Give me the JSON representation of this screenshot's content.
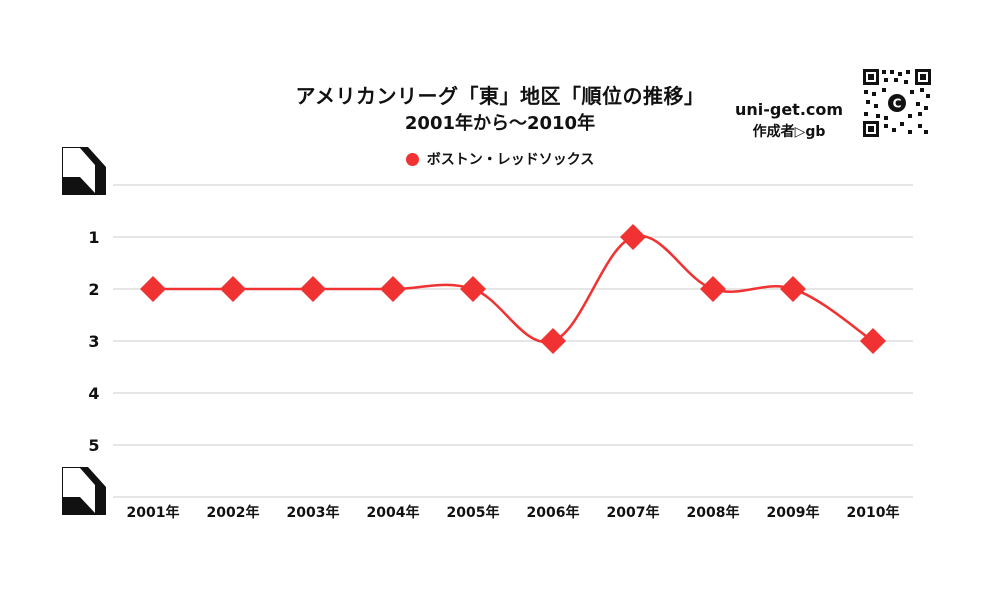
{
  "header": {
    "site": "uni-get.com",
    "author": "作成者▷gb"
  },
  "chart_data": {
    "type": "line",
    "title": "アメリカンリーグ「東」地区「順位の推移」",
    "subtitle": "2001年から～2010年",
    "categories": [
      "2001年",
      "2002年",
      "2003年",
      "2004年",
      "2005年",
      "2006年",
      "2007年",
      "2008年",
      "2009年",
      "2010年"
    ],
    "series": [
      {
        "name": "ボストン・レッドソックス",
        "values": [
          2,
          2,
          2,
          2,
          2,
          3,
          1,
          2,
          2,
          3
        ],
        "color": "#f03232"
      }
    ],
    "yticks": [
      1,
      2,
      3,
      4,
      5
    ],
    "ylim": [
      0,
      5
    ],
    "y_inverted": true,
    "grid": true,
    "legend_position": "top-center",
    "smooth": true,
    "marker": "diamond"
  },
  "colors": {
    "series": "#f03232",
    "grid": "#cccccc",
    "text": "#111111"
  },
  "icons": {
    "qr": "qr-code-icon",
    "corner": "corner-bracket-icon"
  }
}
